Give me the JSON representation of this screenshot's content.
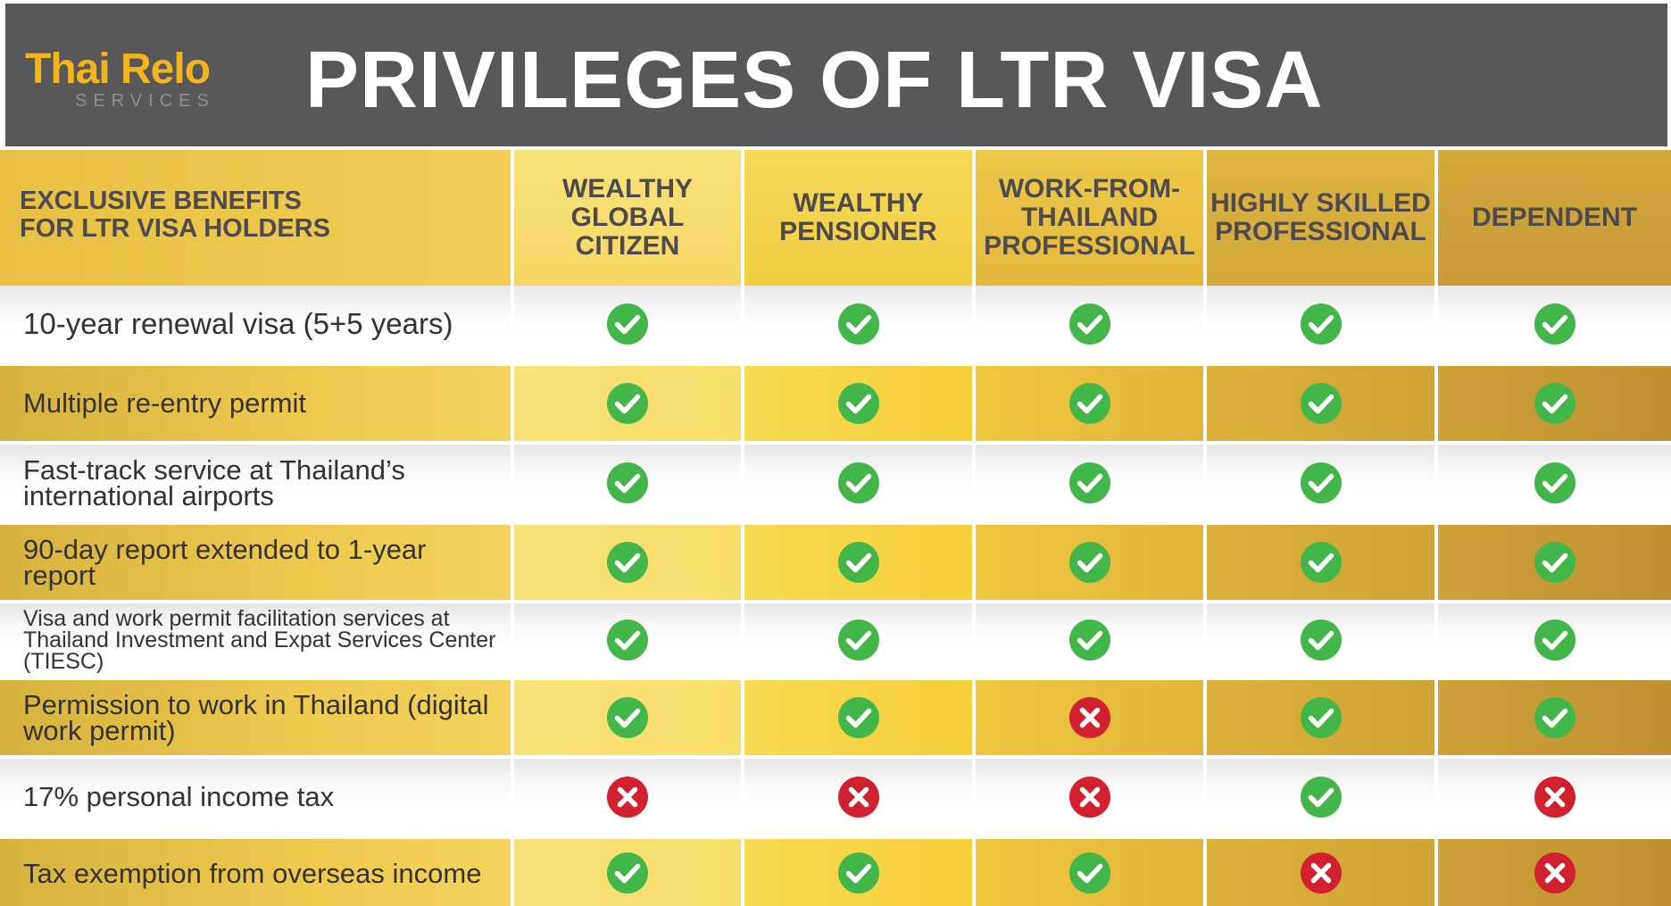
{
  "header": {
    "logo_main": "Thai Relo",
    "logo_sub": "SERVICES",
    "title": "PRIVILEGES OF LTR VISA"
  },
  "table": {
    "corner_label": "EXCLUSIVE BENEFITS\nFOR LTR VISA HOLDERS",
    "columns": [
      "WEALTHY\nGLOBAL\nCITIZEN",
      "WEALTHY\nPENSIONER",
      "WORK-FROM-\nTHAILAND\nPROFESSIONAL",
      "HIGHLY SKILLED\nPROFESSIONAL",
      "DEPENDENT"
    ],
    "rows": [
      {
        "benefit": "10-year renewal visa (5+5 years)",
        "values": [
          true,
          true,
          true,
          true,
          true
        ]
      },
      {
        "benefit": "Multiple re-entry permit",
        "values": [
          true,
          true,
          true,
          true,
          true
        ]
      },
      {
        "benefit": "Fast-track service at Thailand’s international airports",
        "values": [
          true,
          true,
          true,
          true,
          true
        ]
      },
      {
        "benefit": "90-day report extended to 1-year report",
        "values": [
          true,
          true,
          true,
          true,
          true
        ]
      },
      {
        "benefit": "Visa and work permit facilitation services at Thailand Investment and Expat Services Center (TIESC)",
        "values": [
          true,
          true,
          true,
          true,
          true
        ]
      },
      {
        "benefit": "Permission to work in Thailand (digital work permit)",
        "values": [
          true,
          true,
          false,
          true,
          true
        ]
      },
      {
        "benefit": "17% personal income tax",
        "values": [
          false,
          false,
          false,
          true,
          false
        ]
      },
      {
        "benefit": "Tax exemption from overseas income",
        "values": [
          true,
          true,
          true,
          false,
          false
        ]
      }
    ]
  },
  "colors": {
    "header_bg": "#58585a",
    "check": "#43b649",
    "cross": "#d12030",
    "text_dark": "#333333",
    "logo_gold": "#f2b51d"
  },
  "icons": {
    "yes": "check-circle-icon",
    "no": "cross-circle-icon"
  }
}
